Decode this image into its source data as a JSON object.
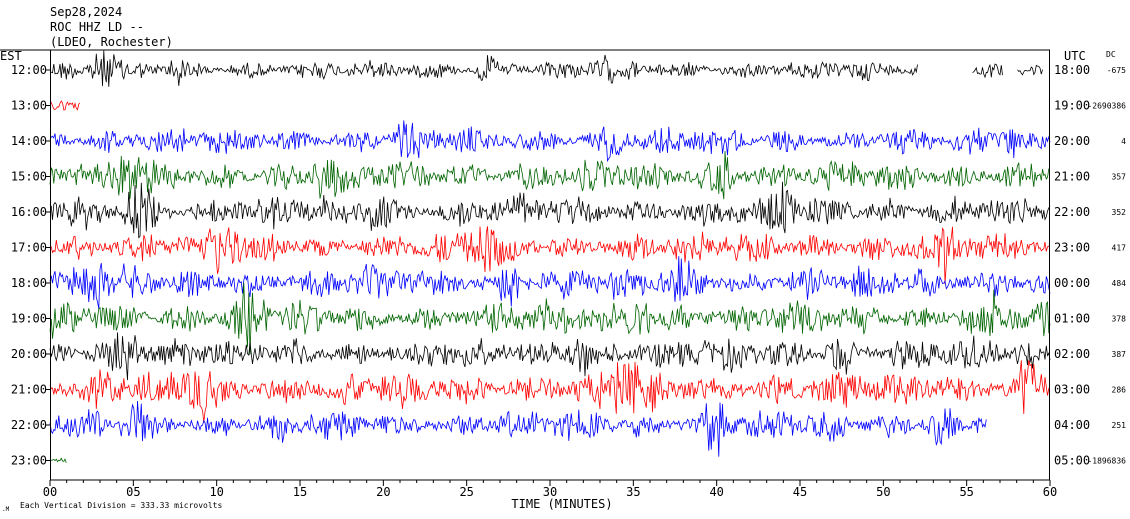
{
  "header": {
    "line1": "Sep28,2024",
    "line2": "ROC HHZ LD --",
    "line3": "(LDEO, Rochester)"
  },
  "left_axis_label": "EST",
  "right_axis_label": "UTC",
  "dc_label": "DC",
  "footer": {
    "scale_note": "Each Vertical Division =  333.33 microvolts"
  },
  "colors": {
    "black": "#000000",
    "red": "#ff0000",
    "blue": "#0000ff",
    "green": "#006400"
  },
  "chart_data": {
    "type": "line",
    "title": "Sep28,2024",
    "xlabel": "TIME (MINUTES)",
    "ylabel": "",
    "xlim": [
      0,
      60
    ],
    "x_ticks": [
      "00",
      "05",
      "10",
      "15",
      "20",
      "25",
      "30",
      "35",
      "40",
      "45",
      "50",
      "55",
      "60"
    ],
    "trace_color_cycle": [
      "black",
      "red",
      "blue",
      "green"
    ],
    "traces": [
      {
        "est": "12:00",
        "utc": "18:00",
        "dc": "-675",
        "color": "black",
        "amp": 0.55,
        "end_min": 59.6,
        "gaps": [
          [
            52.1,
            55.3
          ],
          [
            57.2,
            58.0
          ]
        ],
        "events": [
          {
            "t": 3.1,
            "w": 0.9,
            "a": 2.0
          },
          {
            "t": 7.5,
            "w": 0.5,
            "a": 1.4
          },
          {
            "t": 26.3,
            "w": 0.6,
            "a": 1.5
          },
          {
            "t": 33.1,
            "w": 0.5,
            "a": 1.2
          }
        ]
      },
      {
        "est": "13:00",
        "utc": "19:00",
        "dc": "-2690386",
        "color": "red",
        "amp": 0.35,
        "end_min": 1.8,
        "gaps": [],
        "events": []
      },
      {
        "est": "14:00",
        "utc": "20:00",
        "dc": "4",
        "color": "blue",
        "amp": 0.75,
        "end_min": 60,
        "gaps": [],
        "events": [
          {
            "t": 21.3,
            "w": 0.6,
            "a": 1.5
          },
          {
            "t": 33.6,
            "w": 0.6,
            "a": 1.4
          },
          {
            "t": 57.6,
            "w": 0.5,
            "a": 1.6
          }
        ]
      },
      {
        "est": "15:00",
        "utc": "21:00",
        "dc": "357",
        "color": "green",
        "amp": 0.9,
        "end_min": 60,
        "gaps": [],
        "events": [
          {
            "t": 4.8,
            "w": 0.7,
            "a": 1.6
          },
          {
            "t": 16.5,
            "w": 0.6,
            "a": 1.5
          },
          {
            "t": 40.4,
            "w": 0.6,
            "a": 1.4
          }
        ]
      },
      {
        "est": "16:00",
        "utc": "22:00",
        "dc": "352",
        "color": "black",
        "amp": 0.9,
        "end_min": 60,
        "gaps": [],
        "events": [
          {
            "t": 5.2,
            "w": 0.8,
            "a": 1.7
          },
          {
            "t": 19.4,
            "w": 0.6,
            "a": 1.5
          },
          {
            "t": 44.1,
            "w": 0.6,
            "a": 1.4
          }
        ]
      },
      {
        "est": "17:00",
        "utc": "23:00",
        "dc": "417",
        "color": "red",
        "amp": 0.9,
        "end_min": 60,
        "gaps": [],
        "events": [
          {
            "t": 10.5,
            "w": 0.8,
            "a": 1.6
          },
          {
            "t": 26.2,
            "w": 0.8,
            "a": 1.6
          },
          {
            "t": 53.8,
            "w": 0.5,
            "a": 1.5
          }
        ]
      },
      {
        "est": "18:00",
        "utc": "00:00",
        "dc": "484",
        "color": "blue",
        "amp": 0.9,
        "end_min": 60,
        "gaps": [],
        "events": [
          {
            "t": 2.6,
            "w": 0.7,
            "a": 1.6
          },
          {
            "t": 27.8,
            "w": 0.7,
            "a": 1.5
          },
          {
            "t": 37.9,
            "w": 0.7,
            "a": 1.5
          }
        ]
      },
      {
        "est": "19:00",
        "utc": "01:00",
        "dc": "378",
        "color": "green",
        "amp": 0.95,
        "end_min": 60,
        "gaps": [],
        "events": [
          {
            "t": 11.9,
            "w": 0.8,
            "a": 1.7
          },
          {
            "t": 35.4,
            "w": 0.7,
            "a": 1.5
          },
          {
            "t": 56.6,
            "w": 0.6,
            "a": 1.5
          }
        ]
      },
      {
        "est": "20:00",
        "utc": "02:00",
        "dc": "387",
        "color": "black",
        "amp": 0.9,
        "end_min": 60,
        "gaps": [],
        "events": [
          {
            "t": 4.6,
            "w": 0.8,
            "a": 1.6
          },
          {
            "t": 31.8,
            "w": 0.6,
            "a": 1.5
          },
          {
            "t": 47.2,
            "w": 0.6,
            "a": 1.4
          }
        ]
      },
      {
        "est": "21:00",
        "utc": "03:00",
        "dc": "286",
        "color": "red",
        "amp": 1.0,
        "end_min": 60,
        "gaps": [],
        "events": [
          {
            "t": 9.1,
            "w": 0.8,
            "a": 1.6
          },
          {
            "t": 34.6,
            "w": 0.7,
            "a": 1.8
          },
          {
            "t": 58.7,
            "w": 0.7,
            "a": 1.8
          }
        ]
      },
      {
        "est": "22:00",
        "utc": "04:00",
        "dc": "251",
        "color": "blue",
        "amp": 0.85,
        "end_min": 56.2,
        "gaps": [],
        "events": [
          {
            "t": 5.1,
            "w": 0.7,
            "a": 1.5
          },
          {
            "t": 39.8,
            "w": 0.8,
            "a": 1.8
          },
          {
            "t": 53.4,
            "w": 0.7,
            "a": 1.7
          }
        ]
      },
      {
        "est": "23:00",
        "utc": "05:00",
        "dc": "-1896836",
        "color": "green",
        "amp": 0.25,
        "end_min": 1.0,
        "gaps": [],
        "events": []
      }
    ]
  }
}
